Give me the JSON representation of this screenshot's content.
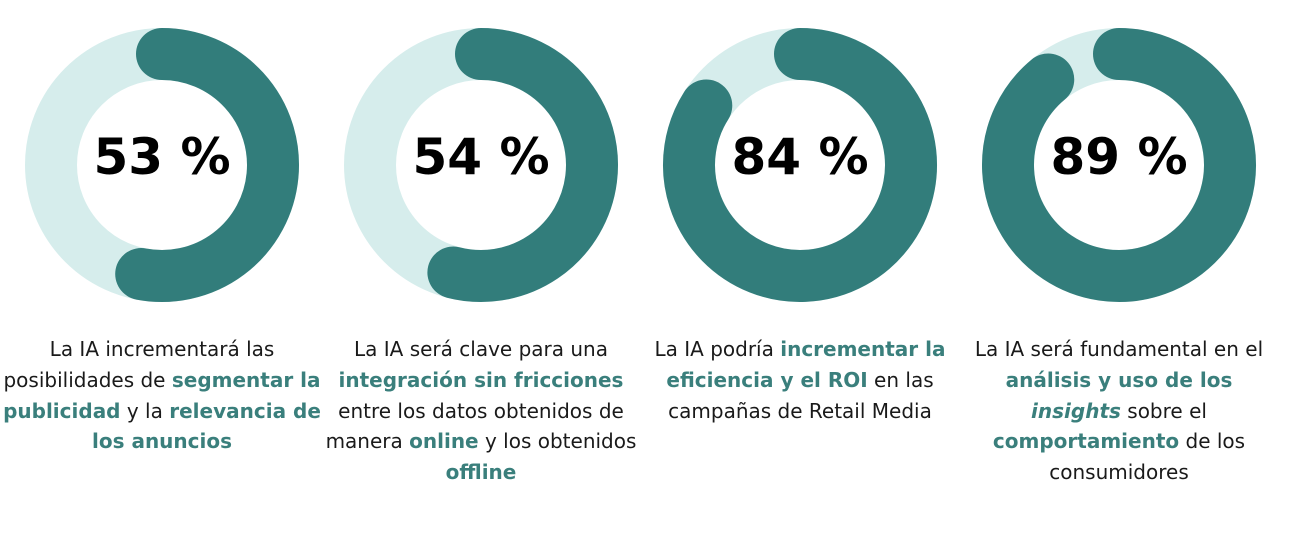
{
  "colors": {
    "track": "#d6edec",
    "fill": "#327d7b",
    "highlight": "#3a7f7c",
    "text": "#1a1a1a",
    "number": "#000000"
  },
  "chart_data": [
    {
      "type": "pie",
      "subtype": "donut",
      "label": "53 %",
      "value": 53,
      "max": 100,
      "caption": [
        {
          "t": "La IA incrementará las posibilidades de "
        },
        {
          "t": "segmentar la publicidad",
          "hl": true
        },
        {
          "t": " y la "
        },
        {
          "t": "relevancia de los anuncios",
          "hl": true
        }
      ]
    },
    {
      "type": "pie",
      "subtype": "donut",
      "label": "54 %",
      "value": 54,
      "max": 100,
      "caption": [
        {
          "t": "La IA será clave para una "
        },
        {
          "t": "integración sin fricciones",
          "hl": true
        },
        {
          "t": " entre los datos obtenidos de manera "
        },
        {
          "t": "online",
          "hl": true
        },
        {
          "t": " y los obtenidos "
        },
        {
          "t": "offline",
          "hl": true
        }
      ]
    },
    {
      "type": "pie",
      "subtype": "donut",
      "label": "84 %",
      "value": 84,
      "max": 100,
      "caption": [
        {
          "t": "La IA podría "
        },
        {
          "t": "incrementar la eficiencia y el ROI",
          "hl": true
        },
        {
          "t": " en las campañas de Retail Media"
        }
      ]
    },
    {
      "type": "pie",
      "subtype": "donut",
      "label": "89 %",
      "value": 89,
      "max": 100,
      "caption": [
        {
          "t": "La IA será fundamental en el "
        },
        {
          "t": "análisis y uso de los ",
          "hl": true
        },
        {
          "t": "insights",
          "hl": true,
          "it": true
        },
        {
          "t": " sobre el "
        },
        {
          "t": "comportamiento",
          "hl": true
        },
        {
          "t": " de los consumidores"
        }
      ]
    }
  ]
}
